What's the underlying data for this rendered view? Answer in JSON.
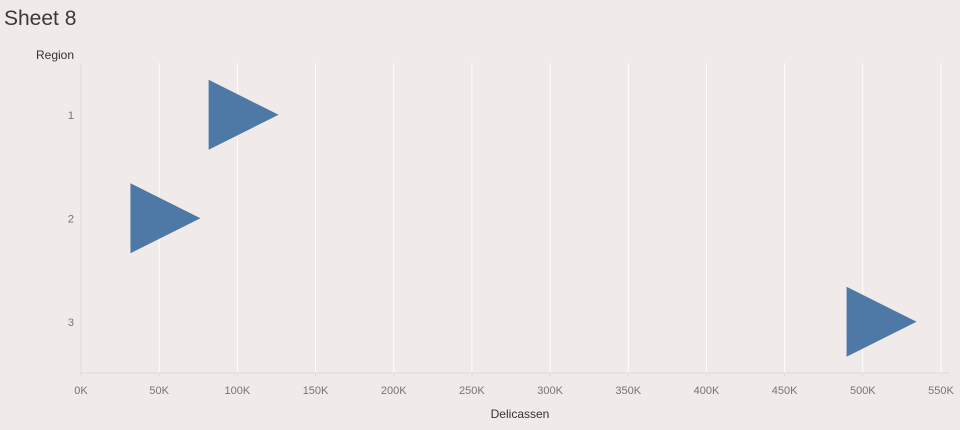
{
  "sheet": {
    "title": "Sheet 8"
  },
  "colors": {
    "background": "#f0eae8",
    "mark": "#4e79a7",
    "grid": "#ffffff",
    "axis": "#dcdcdc"
  },
  "chart_data": {
    "type": "scatter",
    "mark_shape": "triangle-right",
    "xlabel": "Delicassen",
    "ylabel": "Region",
    "xlim": [
      0,
      550000
    ],
    "x_ticks": [
      0,
      50000,
      100000,
      150000,
      200000,
      250000,
      300000,
      350000,
      400000,
      450000,
      500000,
      550000
    ],
    "x_tick_labels": [
      "0K",
      "50K",
      "100K",
      "150K",
      "200K",
      "250K",
      "300K",
      "350K",
      "400K",
      "450K",
      "500K",
      "550K"
    ],
    "categories": [
      "1",
      "2",
      "3"
    ],
    "points": [
      {
        "region": "1",
        "x": 104000
      },
      {
        "region": "2",
        "x": 54000
      },
      {
        "region": "3",
        "x": 512000
      }
    ],
    "grid": true
  }
}
